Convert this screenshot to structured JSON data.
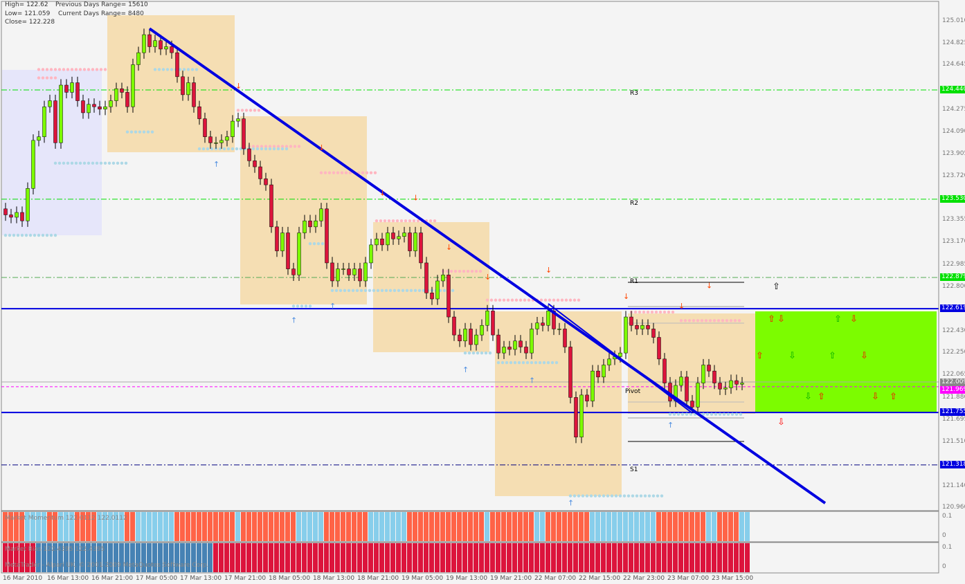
{
  "header": {
    "high": "High= 122.62",
    "low": "Low= 121.059",
    "close": "Close= 122.228",
    "prev_range": "Previous Days Range= 15610",
    "cur_range": "Current Days Range= 8480"
  },
  "levels": {
    "r3": "R3",
    "r2": "R2",
    "r1": "R1",
    "pivot": "Pivot",
    "s1": "S1"
  },
  "price_axis": [
    "125.010",
    "124.825",
    "124.645",
    "124.275",
    "124.090",
    "123.905",
    "123.720",
    "123.355",
    "123.170",
    "122.985",
    "122.800",
    "122.430",
    "122.250",
    "122.065",
    "121.880",
    "121.695",
    "121.510",
    "121.140",
    "120.960"
  ],
  "price_tags": [
    {
      "text": "124.440",
      "price": 124.44,
      "color": "#00e000"
    },
    {
      "text": "123.530",
      "price": 123.53,
      "color": "#00e000"
    },
    {
      "text": "122.879",
      "price": 122.879,
      "color": "#00e000"
    },
    {
      "text": "122.619",
      "price": 122.619,
      "color": "#0000e0"
    },
    {
      "text": "122.009",
      "price": 122.009,
      "color": "#888888"
    },
    {
      "text": "121.969",
      "price": 121.969,
      "color": "#ff00ff"
    },
    {
      "text": "121.755",
      "price": 121.755,
      "color": "#0000e0"
    },
    {
      "text": "121.318",
      "price": 121.318,
      "color": "#0000e0"
    }
  ],
  "panel1": {
    "text": "Market Momentum 122.0112 122.0112",
    "scale_top": "0.1",
    "scale_bottom": "0",
    "runs": [
      [
        "d",
        4
      ],
      [
        "u",
        4
      ],
      [
        "d",
        2
      ],
      [
        "u",
        3
      ],
      [
        "d",
        4
      ],
      [
        "u",
        5
      ],
      [
        "d",
        2
      ],
      [
        "u",
        7
      ],
      [
        "d",
        11
      ],
      [
        "u",
        1
      ],
      [
        "d",
        10
      ],
      [
        "u",
        5
      ],
      [
        "d",
        8
      ],
      [
        "u",
        7
      ],
      [
        "d",
        14
      ],
      [
        "u",
        1
      ],
      [
        "d",
        8
      ],
      [
        "u",
        2
      ],
      [
        "d",
        8
      ],
      [
        "u",
        12
      ],
      [
        "d",
        9
      ],
      [
        "u",
        2
      ],
      [
        "d",
        4
      ],
      [
        "u",
        2
      ]
    ],
    "colors": {
      "u": "#87ceeb",
      "d": "#ff6347"
    }
  },
  "panel2": {
    "text": "Market Bias 122.4395 122.4395",
    "watermark": "MetaTrader - Alpari UK, © 2001-2009 MetaQuotes Software Corp.",
    "scale_top": "0.1",
    "scale_bottom": "0",
    "runs": [
      [
        "d",
        6
      ],
      [
        "u",
        32
      ],
      [
        "d",
        97
      ]
    ],
    "colors": {
      "u": "#4682b4",
      "d": "#dc143c"
    }
  },
  "time_axis": [
    "16 Mar 2010",
    "16 Mar 13:00",
    "16 Mar 21:00",
    "17 Mar 05:00",
    "17 Mar 13:00",
    "17 Mar 21:00",
    "18 Mar 05:00",
    "18 Mar 13:00",
    "18 Mar 21:00",
    "19 Mar 05:00",
    "19 Mar 13:00",
    "19 Mar 21:00",
    "22 Mar 07:00",
    "22 Mar 15:00",
    "22 Mar 23:00",
    "23 Mar 07:00",
    "23 Mar 15:00"
  ],
  "chart_data": {
    "type": "candlestick",
    "open_first": 123.45,
    "closes": [
      123.4,
      123.38,
      123.42,
      123.35,
      123.62,
      124.02,
      124.05,
      124.3,
      124.35,
      124.0,
      124.48,
      124.42,
      124.5,
      124.35,
      124.25,
      124.32,
      124.3,
      124.28,
      124.3,
      124.35,
      124.45,
      124.42,
      124.3,
      124.65,
      124.75,
      124.9,
      124.8,
      124.85,
      124.78,
      124.8,
      124.75,
      124.55,
      124.4,
      124.5,
      124.3,
      124.2,
      124.05,
      124.0,
      124.0,
      124.02,
      124.05,
      124.18,
      124.2,
      123.95,
      123.85,
      123.8,
      123.7,
      123.65,
      123.3,
      123.1,
      123.25,
      122.95,
      122.9,
      123.25,
      123.35,
      123.3,
      123.35,
      123.45,
      123.0,
      122.85,
      122.95,
      122.95,
      122.9,
      122.95,
      122.85,
      123.0,
      123.15,
      123.2,
      123.15,
      123.25,
      123.2,
      123.22,
      123.25,
      123.1,
      123.25,
      123.0,
      122.75,
      122.7,
      122.85,
      122.9,
      122.55,
      122.4,
      122.35,
      122.45,
      122.32,
      122.4,
      122.48,
      122.6,
      122.4,
      122.25,
      122.3,
      122.28,
      122.35,
      122.3,
      122.25,
      122.45,
      122.5,
      122.48,
      122.6,
      122.45,
      122.45,
      122.3,
      121.88,
      121.55,
      121.9,
      121.85,
      122.1,
      122.05,
      122.15,
      122.2,
      122.22,
      122.25,
      122.55,
      122.48,
      122.45,
      122.48,
      122.45,
      122.38,
      122.2,
      122.0,
      121.85,
      121.98,
      122.05,
      121.85,
      121.8,
      122.0,
      122.15,
      122.1,
      122.0,
      121.95,
      121.96,
      122.02,
      121.99,
      122.0
    ],
    "resistance_dots": [
      [
        125.1,
        26,
        15
      ],
      [
        124.61,
        6,
        18
      ],
      [
        124.54,
        6,
        9
      ],
      [
        124.27,
        42,
        46
      ],
      [
        123.97,
        44,
        53
      ],
      [
        123.75,
        57,
        67
      ],
      [
        123.35,
        67,
        78
      ],
      [
        122.93,
        79,
        86
      ],
      [
        122.69,
        87,
        104
      ],
      [
        122.59,
        113,
        121
      ],
      [
        122.52,
        122,
        133
      ]
    ],
    "support_dots": [
      [
        123.23,
        0,
        9
      ],
      [
        123.83,
        9,
        22
      ],
      [
        124.09,
        22,
        27
      ],
      [
        124.61,
        27,
        35
      ],
      [
        123.95,
        35,
        51
      ],
      [
        123.16,
        55,
        58
      ],
      [
        122.77,
        59,
        81
      ],
      [
        122.64,
        52,
        55
      ],
      [
        122.25,
        83,
        88
      ],
      [
        122.17,
        89,
        100
      ],
      [
        121.06,
        102,
        119
      ],
      [
        121.74,
        120,
        133
      ]
    ],
    "down_arrows": [
      [
        42,
        124.45
      ],
      [
        57,
        123.94
      ],
      [
        68,
        123.56
      ],
      [
        74,
        123.52
      ],
      [
        80,
        123.11
      ],
      [
        87,
        122.86
      ],
      [
        98,
        122.92
      ],
      [
        112,
        122.7
      ],
      [
        122,
        122.62
      ],
      [
        127,
        122.79
      ]
    ],
    "up_arrows": [
      [
        38,
        123.8
      ],
      [
        52,
        122.5
      ],
      [
        59,
        122.62
      ],
      [
        83,
        122.09
      ],
      [
        95,
        122.0
      ],
      [
        102,
        120.98
      ],
      [
        120,
        121.63
      ]
    ],
    "trend_line": [
      [
        124.95,
        26
      ],
      [
        121.0,
        148
      ]
    ],
    "trend_line2": [
      [
        122.66,
        98
      ],
      [
        121.75,
        124
      ]
    ]
  },
  "signals": [
    {
      "dir": "up",
      "color": "#000000",
      "price": 122.8
    },
    {
      "dir": "up",
      "color": "#ff0000",
      "price": 122.53
    },
    {
      "dir": "down",
      "color": "#ff0000",
      "price": 122.53
    },
    {
      "dir": "up",
      "color": "#00aa00",
      "price": 122.53
    },
    {
      "dir": "down",
      "color": "#ff0000",
      "price": 122.53
    },
    {
      "dir": "up",
      "color": "#ff0000",
      "price": 122.22
    },
    {
      "dir": "down",
      "color": "#00aa00",
      "price": 122.22
    },
    {
      "dir": "up",
      "color": "#00aa00",
      "price": 122.22
    },
    {
      "dir": "down",
      "color": "#ff0000",
      "price": 122.22
    },
    {
      "dir": "down",
      "color": "#00aa00",
      "price": 121.88
    },
    {
      "dir": "up",
      "color": "#ff0000",
      "price": 121.88
    },
    {
      "dir": "down",
      "color": "#ff0000",
      "price": 121.88
    },
    {
      "dir": "up",
      "color": "#ff0000",
      "price": 121.88
    },
    {
      "dir": "down",
      "color": "#ff0000",
      "price": 121.67
    }
  ]
}
